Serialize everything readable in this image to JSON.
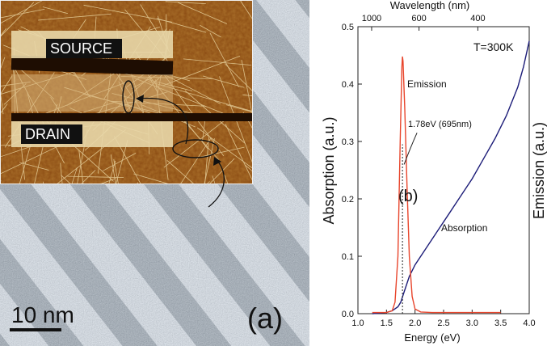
{
  "panel_a": {
    "label": "(a)",
    "scale_bar_label": "10 nm",
    "inset": {
      "source_label": "SOURCE",
      "drain_label": "DRAIN"
    }
  },
  "panel_b": {
    "label": "(b)",
    "temperature_label": "T=300K",
    "emission_label": "Emission",
    "absorption_label": "Absorption",
    "peak_annotation": "1.78eV (695nm)"
  },
  "colors": {
    "emission": "#e8452c",
    "absorption": "#1c1c78",
    "afm_brown": "#8a4a12",
    "tem_gray": "#9aa4ad"
  },
  "chart_data": {
    "type": "line",
    "xlabel": "Energy (eV)",
    "ylabel_left": "Absorption (a.u.)",
    "ylabel_right": "Emission (a.u.)",
    "top_axis_label": "Wavelength (nm)",
    "xlim": [
      1.0,
      4.0
    ],
    "ylim": [
      0.0,
      0.5
    ],
    "x_ticks": [
      "1.0",
      "1.5",
      "2.0",
      "2.5",
      "3.0",
      "3.5",
      "4.0"
    ],
    "y_ticks": [
      "0.0",
      "0.1",
      "0.2",
      "0.3",
      "0.4",
      "0.5"
    ],
    "top_ticks": [
      {
        "label": "1000",
        "energy": 1.24
      },
      {
        "label": "600",
        "energy": 2.07
      },
      {
        "label": "400",
        "energy": 3.1
      }
    ],
    "series": [
      {
        "name": "Absorption",
        "x": [
          1.25,
          1.5,
          1.6,
          1.7,
          1.75,
          1.8,
          1.9,
          2.0,
          2.2,
          2.4,
          2.6,
          2.8,
          3.0,
          3.2,
          3.4,
          3.6,
          3.8,
          3.9,
          4.0
        ],
        "y": [
          0.0,
          0.002,
          0.005,
          0.012,
          0.02,
          0.035,
          0.065,
          0.085,
          0.115,
          0.145,
          0.175,
          0.205,
          0.235,
          0.27,
          0.305,
          0.345,
          0.395,
          0.43,
          0.475
        ]
      },
      {
        "name": "Emission",
        "x": [
          1.25,
          1.5,
          1.6,
          1.65,
          1.7,
          1.74,
          1.77,
          1.78,
          1.79,
          1.82,
          1.86,
          1.9,
          1.95,
          2.0,
          2.1,
          2.3,
          3.5
        ],
        "y": [
          0.002,
          0.002,
          0.005,
          0.02,
          0.1,
          0.3,
          0.43,
          0.448,
          0.44,
          0.36,
          0.22,
          0.1,
          0.03,
          0.008,
          0.003,
          0.002,
          0.002
        ]
      }
    ],
    "annotation": {
      "x": 1.78,
      "y_from": 0.0,
      "y_to": 0.295
    }
  }
}
